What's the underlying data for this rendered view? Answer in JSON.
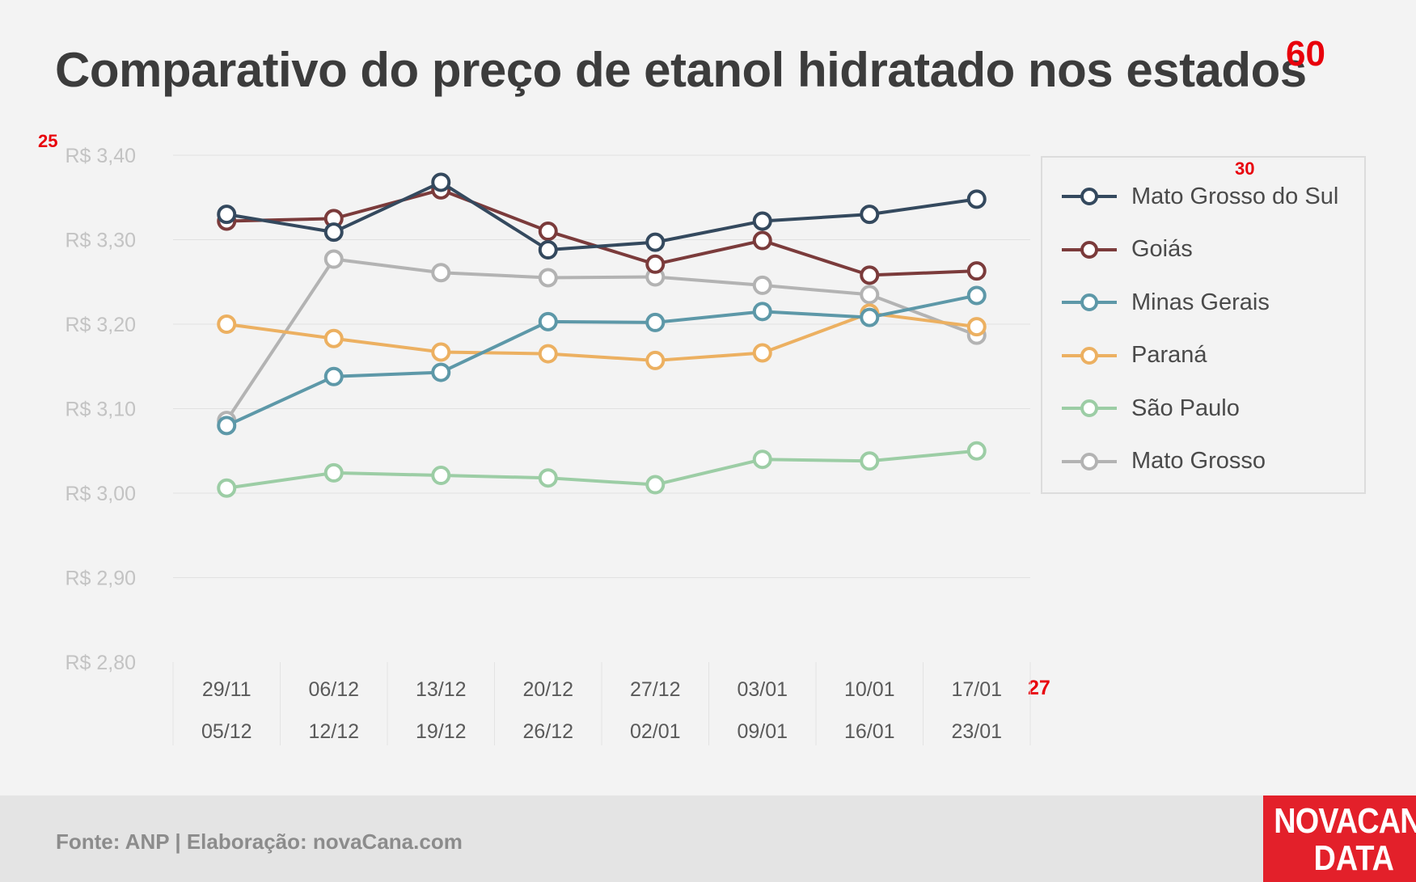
{
  "chart_data": {
    "type": "line",
    "title": "Comparativo do preço de etanol hidratado nos estados",
    "x_labels_top": [
      "29/11",
      "06/12",
      "13/12",
      "20/12",
      "27/12",
      "03/01",
      "10/01",
      "17/01"
    ],
    "x_labels_bottom": [
      "05/12",
      "12/12",
      "19/12",
      "26/12",
      "02/01",
      "09/01",
      "16/01",
      "23/01"
    ],
    "y_ticks": [
      "R$ 3,40",
      "R$ 3,30",
      "R$ 3,20",
      "R$ 3,10",
      "R$ 3,00",
      "R$ 2,90",
      "R$ 2,80"
    ],
    "y_tick_values": [
      3.4,
      3.3,
      3.2,
      3.1,
      3.0,
      2.9,
      2.8
    ],
    "ylim": [
      2.8,
      3.4
    ],
    "grid": true,
    "legend_position": "right",
    "series": [
      {
        "name": "Mato Grosso do Sul",
        "color": "#34495e",
        "values": [
          3.33,
          3.309,
          3.368,
          3.288,
          3.297,
          3.322,
          3.33,
          3.348
        ]
      },
      {
        "name": "Goiás",
        "color": "#7b3b3b",
        "values": [
          3.322,
          3.325,
          3.359,
          3.31,
          3.271,
          3.299,
          3.258,
          3.263
        ]
      },
      {
        "name": "Minas Gerais",
        "color": "#5d98a8",
        "values": [
          3.08,
          3.138,
          3.143,
          3.203,
          3.202,
          3.215,
          3.208,
          3.234
        ]
      },
      {
        "name": "Paraná",
        "color": "#ecb061",
        "values": [
          3.2,
          3.183,
          3.167,
          3.165,
          3.157,
          3.166,
          3.213,
          3.197
        ]
      },
      {
        "name": "São Paulo",
        "color": "#9ccda5",
        "values": [
          3.006,
          3.024,
          3.021,
          3.018,
          3.01,
          3.04,
          3.038,
          3.05
        ]
      },
      {
        "name": "Mato Grosso",
        "color": "#b3b3b3",
        "values": [
          3.086,
          3.277,
          3.261,
          3.255,
          3.256,
          3.246,
          3.235,
          3.187
        ]
      }
    ]
  },
  "annotations": {
    "n60": "60",
    "n25": "25",
    "n30": "30",
    "n27": "27"
  },
  "footer": {
    "source": "Fonte: ANP | Elaboração: novaCana.com"
  },
  "logo": {
    "line1": "NOVACANA",
    "line2": "DATA",
    "color": "#e3202a"
  },
  "colors": {
    "background": "#f3f3f3",
    "footer": "#e4e4e4",
    "marker_note": "#e8000b"
  }
}
